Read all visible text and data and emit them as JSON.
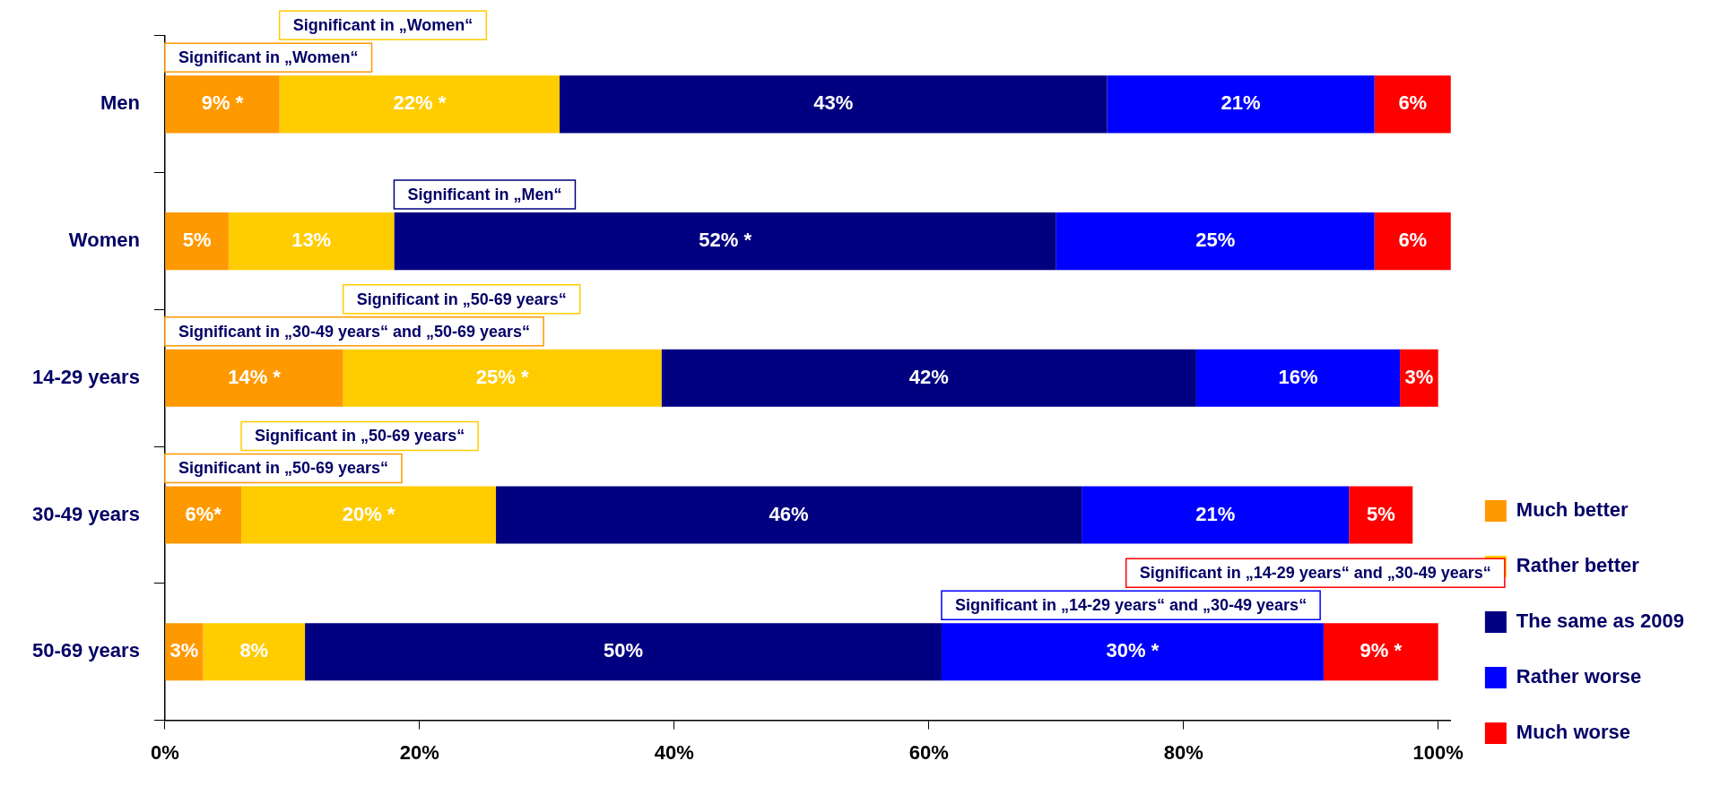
{
  "chart_data": {
    "type": "bar",
    "orientation": "horizontal",
    "stacked": true,
    "categories": [
      "Men",
      "Women",
      "14-29 years",
      "30-49 years",
      "50-69 years"
    ],
    "series": [
      {
        "name": "Much better",
        "color": "#ff9900",
        "values": [
          9,
          5,
          14,
          6,
          3
        ],
        "value_labels": [
          "9% *",
          "5%",
          "14% *",
          "6%*",
          "3%"
        ]
      },
      {
        "name": "Rather better",
        "color": "#ffcc00",
        "values": [
          22,
          13,
          25,
          20,
          8
        ],
        "value_labels": [
          "22% *",
          "13%",
          "25% *",
          "20% *",
          "8%"
        ]
      },
      {
        "name": "The same as 2009",
        "color": "#000080",
        "values": [
          43,
          52,
          42,
          46,
          50
        ],
        "value_labels": [
          "43%",
          "52% *",
          "42%",
          "46%",
          "50%"
        ]
      },
      {
        "name": "Rather worse",
        "color": "#0000ff",
        "values": [
          21,
          25,
          16,
          21,
          30
        ],
        "value_labels": [
          "21%",
          "25%",
          "16%",
          "21%",
          "30% *"
        ]
      },
      {
        "name": "Much worse",
        "color": "#ff0000",
        "values": [
          6,
          6,
          3,
          5,
          9
        ],
        "value_labels": [
          "6%",
          "6%",
          "3%",
          "5%",
          "9% *"
        ]
      }
    ],
    "xlim": [
      0,
      101
    ],
    "xticks": [
      {
        "value": 0,
        "label": "0%"
      },
      {
        "value": 20,
        "label": "20%"
      },
      {
        "value": 40,
        "label": "40%"
      },
      {
        "value": 60,
        "label": "60%"
      },
      {
        "value": 80,
        "label": "80%"
      },
      {
        "value": 100,
        "label": "100%"
      }
    ],
    "grid": false,
    "legend": "right",
    "annotations": [
      "Significant in „Women“",
      "Significant in „Women“",
      "Significant in „Men“",
      "Significant in „30-49 years“ and „50-69 years“",
      "Significant in „50-69 years“",
      "Significant in „50-69 years“",
      "Significant in „50-69 years“",
      "Significant in „14-29 years“ and „30-49 years“",
      "Significant in „14-29 years“ and „30-49 years“"
    ]
  }
}
